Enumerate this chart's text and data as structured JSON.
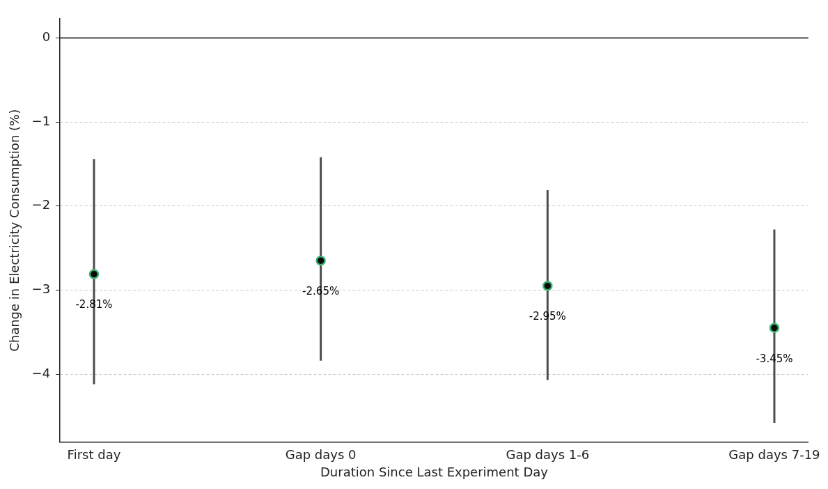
{
  "chart_data": {
    "type": "scatter",
    "xlabel": "Duration Since Last Experiment Day",
    "ylabel": "Change in Electricity Consumption (%)",
    "categories": [
      "First day",
      "Gap days 0",
      "Gap days 1-6",
      "Gap days 7-19"
    ],
    "series": [
      {
        "color": "#3cb371",
        "values": [
          -2.81,
          -2.65,
          -2.95,
          -3.45
        ],
        "errors": [
          [
            -4.12,
            -1.44
          ],
          [
            -3.84,
            -1.42
          ],
          [
            -4.07,
            -1.81
          ],
          [
            -4.58,
            -2.28
          ]
        ],
        "value_labels": [
          "-2.81%",
          "-2.65%",
          "-2.95%",
          "-3.45%"
        ]
      }
    ],
    "ylim": [
      -4.81,
      0.23
    ],
    "yticks": [
      {
        "value": 0,
        "label": "0"
      },
      {
        "value": -1,
        "label": "−1"
      },
      {
        "value": -2,
        "label": "−2"
      },
      {
        "value": -3,
        "label": "−3"
      },
      {
        "value": -4,
        "label": "−4"
      }
    ],
    "ref_lines": [
      {
        "axis": "y",
        "value": 0,
        "color": "#000000"
      }
    ],
    "grid": "y",
    "legend": false,
    "marker": "circle"
  }
}
